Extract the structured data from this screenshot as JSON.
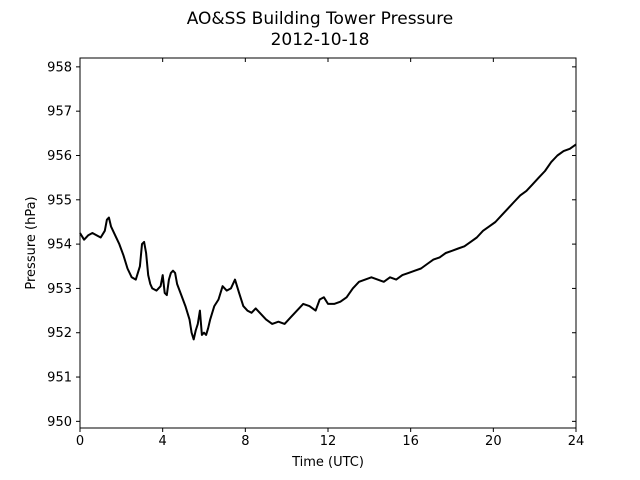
{
  "chart_data": {
    "type": "line",
    "title": "AO&SS Building Tower Pressure",
    "subtitle": "2012-10-18",
    "xlabel": "Time (UTC)",
    "ylabel": "Pressure (hPa)",
    "xlim": [
      0,
      24
    ],
    "ylim": [
      949.85,
      958.2
    ],
    "xticks": [
      0,
      4,
      8,
      12,
      16,
      20,
      24
    ],
    "yticks": [
      950,
      951,
      952,
      953,
      954,
      955,
      956,
      957,
      958
    ],
    "grid": false,
    "line_color": "#000000",
    "series": [
      {
        "x": [
          0,
          0.2,
          0.4,
          0.6,
          0.8,
          1.0,
          1.2,
          1.3,
          1.4,
          1.5,
          1.7,
          1.9,
          2.1,
          2.3,
          2.5,
          2.7,
          2.9,
          3.0,
          3.1,
          3.2,
          3.3,
          3.4,
          3.5,
          3.7,
          3.9,
          4.0,
          4.1,
          4.2,
          4.3,
          4.4,
          4.5,
          4.6,
          4.7,
          4.9,
          5.1,
          5.3,
          5.4,
          5.5,
          5.6,
          5.7,
          5.8,
          5.9,
          6.0,
          6.1,
          6.2,
          6.3,
          6.5,
          6.7,
          6.9,
          7.1,
          7.3,
          7.5,
          7.7,
          7.9,
          8.1,
          8.3,
          8.5,
          8.7,
          9.0,
          9.3,
          9.6,
          9.9,
          10.2,
          10.5,
          10.8,
          11.1,
          11.4,
          11.6,
          11.8,
          12.0,
          12.3,
          12.6,
          12.9,
          13.2,
          13.5,
          13.8,
          14.1,
          14.4,
          14.7,
          15.0,
          15.3,
          15.6,
          15.9,
          16.2,
          16.5,
          16.8,
          17.1,
          17.4,
          17.7,
          18.0,
          18.3,
          18.6,
          18.9,
          19.2,
          19.5,
          19.8,
          20.1,
          20.4,
          20.7,
          21.0,
          21.3,
          21.6,
          21.9,
          22.2,
          22.5,
          22.8,
          23.1,
          23.4,
          23.7,
          24.0
        ],
        "values": [
          954.25,
          954.1,
          954.2,
          954.25,
          954.2,
          954.15,
          954.3,
          954.55,
          954.6,
          954.4,
          954.2,
          954.0,
          953.75,
          953.45,
          953.25,
          953.2,
          953.5,
          954.0,
          954.05,
          953.8,
          953.3,
          953.1,
          953.0,
          952.95,
          953.05,
          953.3,
          952.9,
          952.85,
          953.2,
          953.35,
          953.4,
          953.35,
          953.1,
          952.85,
          952.6,
          952.3,
          952.0,
          951.85,
          952.05,
          952.2,
          952.5,
          951.95,
          952.0,
          951.95,
          952.1,
          952.3,
          952.6,
          952.75,
          953.05,
          952.95,
          953.0,
          953.2,
          952.9,
          952.6,
          952.5,
          952.45,
          952.55,
          952.45,
          952.3,
          952.2,
          952.25,
          952.2,
          952.35,
          952.5,
          952.65,
          952.6,
          952.5,
          952.75,
          952.8,
          952.65,
          952.65,
          952.7,
          952.8,
          953.0,
          953.15,
          953.2,
          953.25,
          953.2,
          953.15,
          953.25,
          953.2,
          953.3,
          953.35,
          953.4,
          953.45,
          953.55,
          953.65,
          953.7,
          953.8,
          953.85,
          953.9,
          953.95,
          954.05,
          954.15,
          954.3,
          954.4,
          954.5,
          954.65,
          954.8,
          954.95,
          955.1,
          955.2,
          955.35,
          955.5,
          955.65,
          955.85,
          956.0,
          956.1,
          956.15,
          956.25
        ]
      }
    ]
  }
}
